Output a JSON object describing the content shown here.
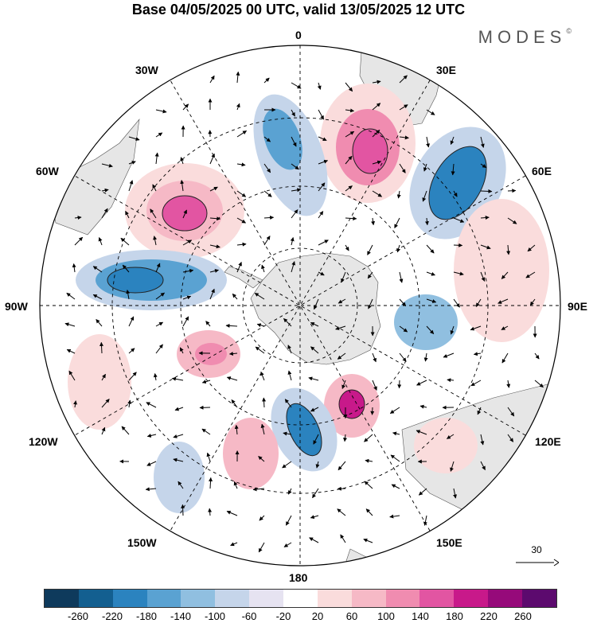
{
  "title": "Base 04/05/2025 00 UTC, valid 13/05/2025 12 UTC",
  "brand": "MODES",
  "brand_mark": "©",
  "lon_labels": {
    "l0": "0",
    "l30e": "30E",
    "l60e": "60E",
    "l90e": "90E",
    "l120e": "120E",
    "l150e": "150E",
    "l180": "180",
    "l150w": "150W",
    "l120w": "120W",
    "l90w": "90W",
    "l60w": "60W",
    "l30w": "30W"
  },
  "reference_vector": {
    "value": "30",
    "icon": "arrow-right-icon"
  },
  "colorbar": {
    "colors": [
      "#0e3a5c",
      "#135f90",
      "#2b83bf",
      "#5aa2d2",
      "#90bfe0",
      "#c5d5ea",
      "#e6e3f1",
      "#ffffff",
      "#fadcdc",
      "#f6b9c6",
      "#f08cb0",
      "#e255a2",
      "#c8198a",
      "#960a7a",
      "#5c0a6e"
    ],
    "ticks": [
      "-260",
      "-220",
      "-180",
      "-140",
      "-100",
      "-60",
      "-20",
      "20",
      "60",
      "100",
      "140",
      "180",
      "220",
      "260"
    ]
  },
  "map": {
    "projection": "south-polar-stereographic",
    "graticule": true,
    "land_color": "#e8e8e8",
    "anomalies": [
      {
        "name": "atlantic-high-1",
        "sign": "+"
      },
      {
        "name": "indian-high",
        "sign": "+"
      },
      {
        "name": "south-atlantic-low",
        "sign": "-"
      },
      {
        "name": "indian-low-1",
        "sign": "-"
      },
      {
        "name": "pacific-low",
        "sign": "-"
      },
      {
        "name": "ross-low",
        "sign": "-"
      },
      {
        "name": "ross-high",
        "sign": "+"
      }
    ]
  }
}
